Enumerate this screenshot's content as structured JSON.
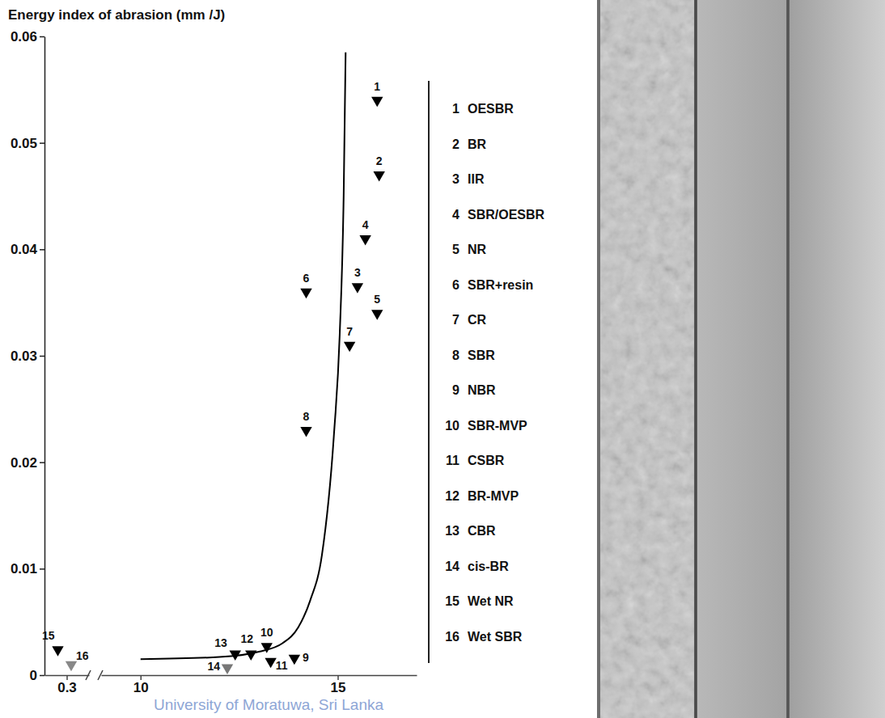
{
  "chart_data": [
    {
      "type": "scatter",
      "y_label": "Energy index of abrasion (mm /J)",
      "xlim": [
        0.2,
        0.4
      ],
      "xticks": [
        0.3
      ],
      "ylim": [
        0,
        0.06
      ],
      "yticks": [
        0,
        0.01,
        0.02,
        0.03,
        0.04,
        0.05,
        0.06
      ],
      "series": [
        {
          "label": "15",
          "name": "Wet NR",
          "x": [
            0.26
          ],
          "values": [
            0.0024
          ],
          "color": "#000000",
          "marker": "triangle-down"
        },
        {
          "label": "16",
          "name": "Wet SBR",
          "x": [
            0.32
          ],
          "values": [
            0.001
          ],
          "color": "#888888",
          "marker": "triangle-down"
        }
      ]
    },
    {
      "type": "scatter",
      "xlim": [
        9,
        17
      ],
      "xticks": [
        10,
        15
      ],
      "legend": "right",
      "annotations": [
        "University of Moratuwa, Sri Lanka"
      ],
      "series": [
        {
          "label": "1",
          "name": "OESBR",
          "x": [
            16.0
          ],
          "values": [
            0.054
          ],
          "color": "#000000",
          "marker": "triangle-down"
        },
        {
          "label": "2",
          "name": "BR",
          "x": [
            16.05
          ],
          "values": [
            0.047
          ],
          "color": "#000000",
          "marker": "triangle-down"
        },
        {
          "label": "3",
          "name": "IIR",
          "x": [
            15.5
          ],
          "values": [
            0.0365
          ],
          "color": "#000000",
          "marker": "triangle-down"
        },
        {
          "label": "4",
          "name": "SBR/OESBR",
          "x": [
            15.7
          ],
          "values": [
            0.041
          ],
          "color": "#000000",
          "marker": "triangle-down"
        },
        {
          "label": "5",
          "name": "NR",
          "x": [
            16.0
          ],
          "values": [
            0.034
          ],
          "color": "#000000",
          "marker": "triangle-down"
        },
        {
          "label": "6",
          "name": "SBR+resin",
          "x": [
            14.2
          ],
          "values": [
            0.036
          ],
          "color": "#000000",
          "marker": "triangle-down"
        },
        {
          "label": "7",
          "name": "CR",
          "x": [
            15.3
          ],
          "values": [
            0.031
          ],
          "color": "#000000",
          "marker": "triangle-down"
        },
        {
          "label": "8",
          "name": "SBR",
          "x": [
            14.2
          ],
          "values": [
            0.023
          ],
          "color": "#000000",
          "marker": "triangle-down"
        },
        {
          "label": "9",
          "name": "NBR",
          "x": [
            13.9
          ],
          "values": [
            0.0016
          ],
          "color": "#000000",
          "marker": "triangle-down"
        },
        {
          "label": "10",
          "name": "SBR-MVP",
          "x": [
            13.2
          ],
          "values": [
            0.0027
          ],
          "color": "#000000",
          "marker": "triangle-down"
        },
        {
          "label": "11",
          "name": "CSBR",
          "x": [
            13.3
          ],
          "values": [
            0.0013
          ],
          "color": "#000000",
          "marker": "triangle-down"
        },
        {
          "label": "12",
          "name": "BR-MVP",
          "x": [
            12.8
          ],
          "values": [
            0.002
          ],
          "color": "#000000",
          "marker": "triangle-down"
        },
        {
          "label": "13",
          "name": "CBR",
          "x": [
            12.4
          ],
          "values": [
            0.002
          ],
          "color": "#000000",
          "marker": "triangle-down"
        },
        {
          "label": "14",
          "name": "cis-BR",
          "x": [
            12.2
          ],
          "values": [
            0.0007
          ],
          "color": "#777777",
          "marker": "triangle-down"
        },
        {
          "type": "line",
          "x": [
            10,
            12,
            13,
            13.6,
            14.0,
            14.3,
            14.6,
            14.9,
            15.05,
            15.15,
            15.2
          ],
          "values": [
            0.0015,
            0.0017,
            0.0022,
            0.003,
            0.0045,
            0.007,
            0.0113,
            0.0224,
            0.032,
            0.045,
            0.0585
          ],
          "color": "#000000",
          "line_style": "solid"
        }
      ]
    }
  ]
}
